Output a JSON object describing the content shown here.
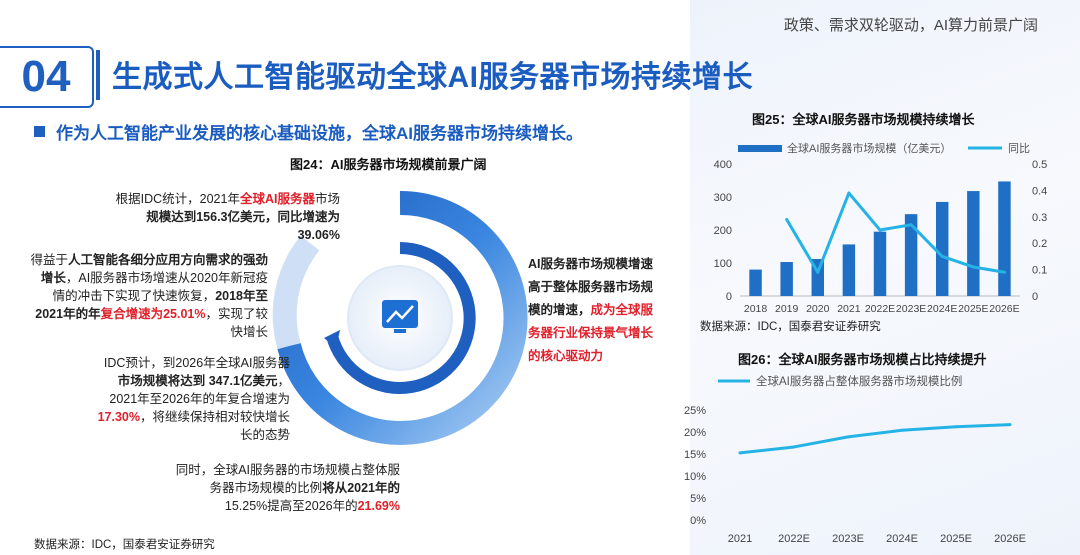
{
  "header_right": "政策、需求双轮驱动，AI算力前景广阔",
  "section": {
    "number": "04",
    "title": "生成式人工智能驱动全球AI服务器市场持续增长"
  },
  "subtitle": "作为人工智能产业发展的核心基础设施，全球AI服务器市场持续增长。",
  "fig24": {
    "title": "图24：AI服务器市场规模前景广阔",
    "note1": {
      "a": "根据IDC统计，2021年",
      "b": "全球AI服务器",
      "c": "市场",
      "d": "规模达到156.3亿美元，同比增速为",
      "e": "39.06%"
    },
    "note2": {
      "a": "得益于",
      "b": "人工智能各细分应用方向需求的强劲",
      "c": "增长",
      "d": "，AI服务器市场增速从2020年新冠疫",
      "e": "情的冲击下实现了快速恢复，",
      "f": "2018年至",
      "g": "2021年的年",
      "h": "复合增速为25.01%",
      "i": "，实现了较",
      "j": "快增长"
    },
    "note3": {
      "a": "IDC预计，到2026年全球AI服务器",
      "b": "市场规模将达到 347.1亿美元",
      "c": "，",
      "d": "2021年至2026年的年复合增速为",
      "e": "17.30%",
      "f": "，将继续保持相对较快增长",
      "g": "长的态势"
    },
    "note4": {
      "a": "同时，全球AI服务器的市场规模占整体服",
      "b": "务器市场规模的比例",
      "c": "将从2021年的",
      "d": "15.25%提高至2026年的",
      "e": "21.69%"
    },
    "note5": {
      "a": "AI服务器市场规模增速",
      "b": "高于整体服务器市场规",
      "c": "模的增速，",
      "d": "成为全球服",
      "e": "务器行业保持景气增长",
      "f": "的核心驱动力"
    },
    "source": "数据来源：IDC，国泰君安证券研究"
  },
  "chart_data": [
    {
      "type": "bar",
      "title": "图25：全球AI服务器市场规模持续增长",
      "categories": [
        "2018",
        "2019",
        "2020",
        "2021",
        "2022E",
        "2023E",
        "2024E",
        "2025E",
        "2026E"
      ],
      "series": [
        {
          "name": "全球AI服务器市场规模（亿美元）",
          "type": "bar",
          "axis": "left",
          "values": [
            80,
            103,
            112,
            156.3,
            195,
            248,
            285,
            318,
            347.1
          ]
        },
        {
          "name": "同比",
          "type": "line",
          "axis": "right",
          "values": [
            null,
            0.29,
            0.09,
            0.39,
            0.25,
            0.27,
            0.15,
            0.11,
            0.09
          ]
        }
      ],
      "y_left": {
        "lim": [
          0,
          400
        ],
        "ticks": [
          0,
          100,
          200,
          300,
          400
        ]
      },
      "y_right": {
        "lim": [
          0,
          0.5
        ],
        "ticks": [
          "0",
          "0.1",
          "0.2",
          "0.3",
          "0.4",
          "0.5"
        ]
      },
      "colors": {
        "bar": "#1f6fc5",
        "line": "#25b3e6"
      },
      "legend": "top",
      "source": "数据来源：IDC，国泰君安证券研究"
    },
    {
      "type": "line",
      "title": "图26：全球AI服务器市场规模占比持续提升",
      "categories": [
        "2021",
        "2022E",
        "2023E",
        "2024E",
        "2025E",
        "2026E"
      ],
      "series": [
        {
          "name": "全球AI服务器占整体服务器市场规模比例",
          "values": [
            15.25,
            16.6,
            18.9,
            20.4,
            21.2,
            21.69
          ]
        }
      ],
      "y_ticks": [
        "0%",
        "5%",
        "10%",
        "15%",
        "20%",
        "25%"
      ],
      "ylim": [
        0,
        25
      ],
      "colors": {
        "line": "#25b3e6"
      },
      "legend": "top"
    }
  ],
  "colors": {
    "brand": "#1b5cc0",
    "accent_red": "#e0202b"
  },
  "icons": {
    "center": "monitor-chart-icon"
  }
}
